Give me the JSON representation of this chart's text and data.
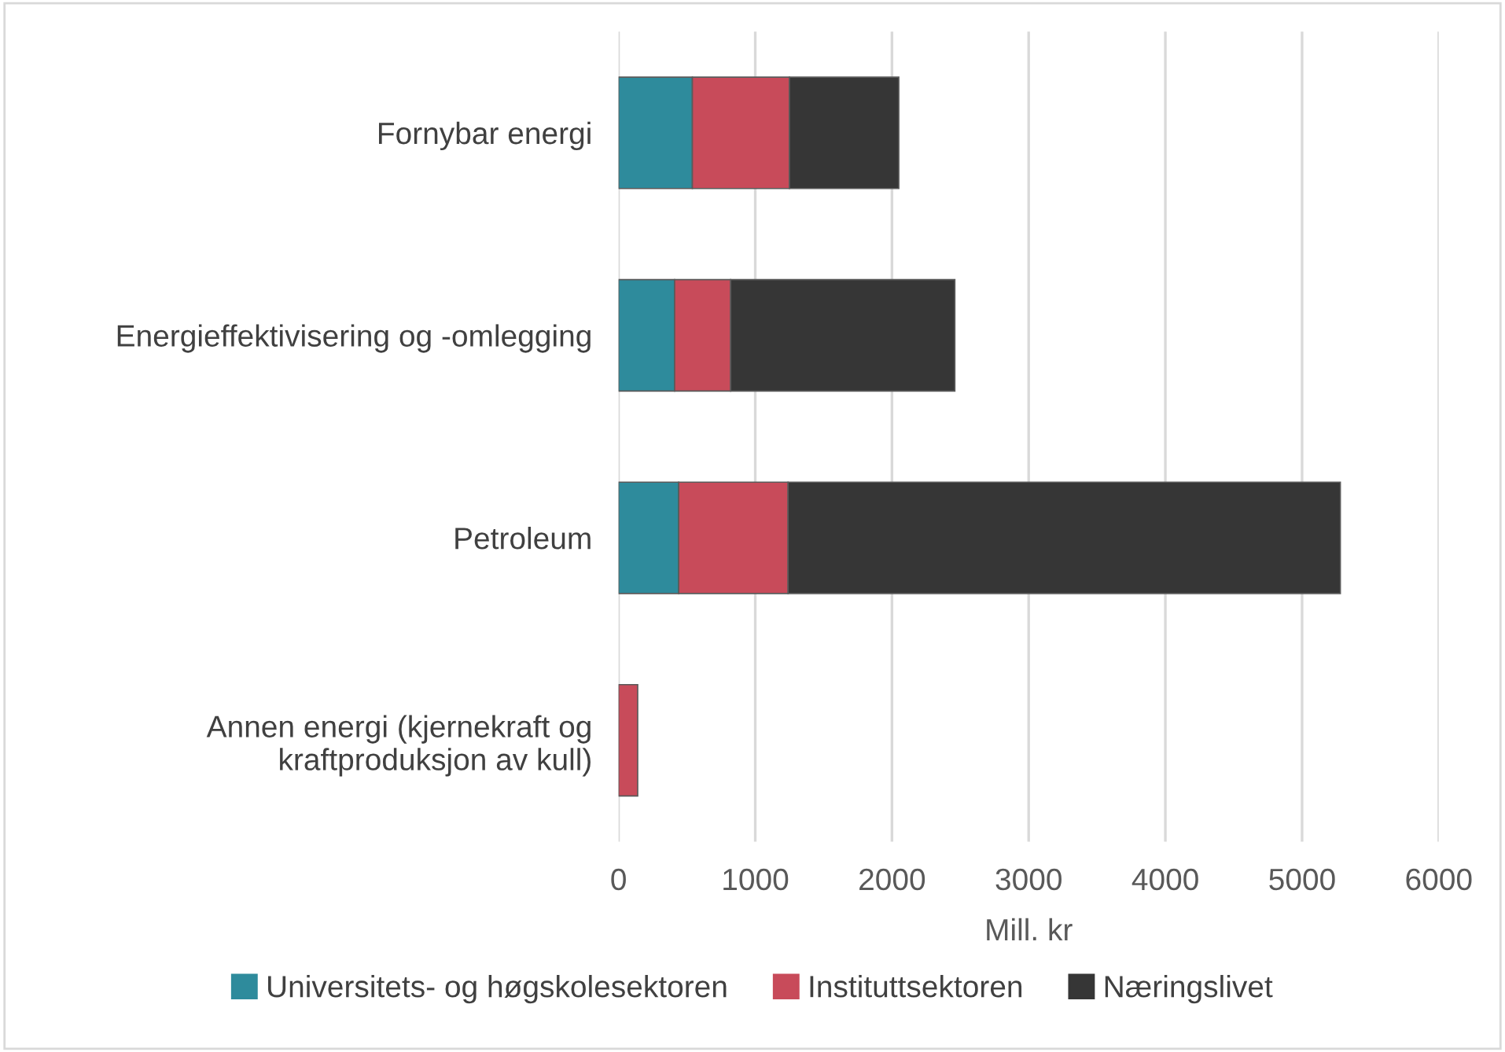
{
  "chart_data": {
    "type": "bar",
    "orientation": "horizontal",
    "stacked": true,
    "xlabel": "Mill. kr",
    "categories": [
      "Fornybar energi",
      "Energieffektivisering og -omlegging",
      "Petroleum",
      "Annen energi (kjernekraft og kraftproduksjon av kull)"
    ],
    "series": [
      {
        "name": "Universitets- og høgskolesektoren",
        "color": "#2e8b9c",
        "values": [
          540,
          410,
          440,
          0
        ]
      },
      {
        "name": "Instituttsektoren",
        "color": "#c84b5a",
        "values": [
          710,
          410,
          800,
          140
        ]
      },
      {
        "name": "Næringslivet",
        "color": "#363636",
        "values": [
          800,
          1640,
          4040,
          0
        ]
      }
    ],
    "xlim": [
      0,
      6000
    ],
    "xticks": [
      0,
      1000,
      2000,
      3000,
      4000,
      5000,
      6000
    ],
    "grid": "x",
    "legend": "bottom"
  }
}
